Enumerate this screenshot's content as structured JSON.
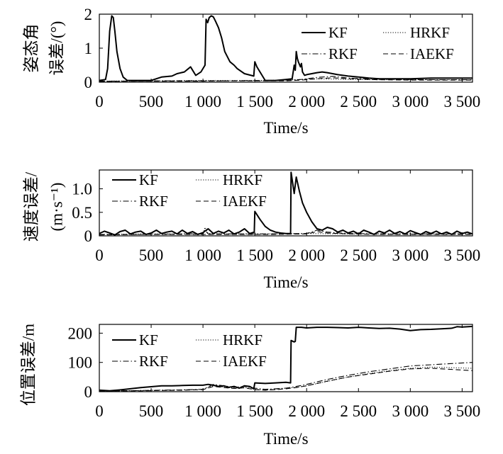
{
  "chart_data": [
    {
      "type": "line",
      "title": "",
      "xlabel": "Time/s",
      "ylabel_lines": [
        "姿态角",
        "误差/(°)"
      ],
      "xlim": [
        0,
        3600
      ],
      "ylim": [
        0,
        2
      ],
      "xticks": [
        0,
        500,
        1000,
        1500,
        2000,
        2500,
        3000,
        3500
      ],
      "xtick_labels": [
        "0",
        "500",
        "1 000",
        "1 500",
        "2 000",
        "2 500",
        "3 000",
        "3 500"
      ],
      "yticks": [
        0,
        1,
        2
      ],
      "ytick_labels": [
        "0",
        "1",
        "2"
      ],
      "legend": [
        "KF",
        "HRKF",
        "RKF",
        "IAEKF"
      ],
      "series": [
        {
          "name": "KF",
          "style": "solid",
          "x": [
            0,
            60,
            80,
            100,
            120,
            135,
            150,
            170,
            200,
            230,
            270,
            350,
            500,
            600,
            700,
            750,
            820,
            860,
            880,
            900,
            930,
            980,
            1020,
            1030,
            1045,
            1060,
            1080,
            1100,
            1120,
            1150,
            1180,
            1210,
            1260,
            1300,
            1330,
            1400,
            1490,
            1500,
            1520,
            1600,
            1640,
            1700,
            1800,
            1860,
            1880,
            1890,
            1900,
            1910,
            1920,
            1940,
            1950,
            1960,
            1980,
            2000,
            2050,
            2100,
            2150,
            2200,
            2300,
            2400,
            2500,
            2600,
            2700,
            2800,
            2900,
            3000,
            3200,
            3400,
            3600
          ],
          "y": [
            0.05,
            0.08,
            0.4,
            1.5,
            1.95,
            1.9,
            1.5,
            0.9,
            0.4,
            0.15,
            0.05,
            0.05,
            0.05,
            0.15,
            0.18,
            0.25,
            0.3,
            0.4,
            0.45,
            0.35,
            0.2,
            0.3,
            0.5,
            1.85,
            1.75,
            1.9,
            1.95,
            1.92,
            1.8,
            1.6,
            1.3,
            0.9,
            0.6,
            0.5,
            0.4,
            0.25,
            0.18,
            0.6,
            0.45,
            0.05,
            0.05,
            0.05,
            0.08,
            0.1,
            0.5,
            0.35,
            0.9,
            0.7,
            0.6,
            0.45,
            0.55,
            0.3,
            0.2,
            0.22,
            0.25,
            0.28,
            0.3,
            0.28,
            0.22,
            0.18,
            0.15,
            0.12,
            0.1,
            0.1,
            0.1,
            0.1,
            0.12,
            0.12,
            0.12
          ]
        },
        {
          "name": "HRKF",
          "style": "dotted",
          "x": [
            0,
            300,
            600,
            900,
            1200,
            1500,
            1800,
            2100,
            2400,
            2700,
            3000,
            3300,
            3600
          ],
          "y": [
            0.03,
            0.04,
            0.04,
            0.05,
            0.05,
            0.05,
            0.06,
            0.1,
            0.08,
            0.07,
            0.07,
            0.07,
            0.07
          ]
        },
        {
          "name": "RKF",
          "style": "dashdot",
          "x": [
            0,
            300,
            600,
            900,
            1200,
            1500,
            1800,
            1950,
            2100,
            2250,
            2400,
            2700,
            3000,
            3300,
            3600
          ],
          "y": [
            0.03,
            0.03,
            0.04,
            0.04,
            0.04,
            0.05,
            0.05,
            0.08,
            0.14,
            0.17,
            0.12,
            0.09,
            0.08,
            0.07,
            0.07
          ]
        },
        {
          "name": "IAEKF",
          "style": "dashed",
          "x": [
            0,
            300,
            600,
            900,
            1200,
            1500,
            1800,
            1950,
            2100,
            2250,
            2400,
            2700,
            3000,
            3300,
            3600
          ],
          "y": [
            0.02,
            0.03,
            0.03,
            0.03,
            0.04,
            0.04,
            0.04,
            0.06,
            0.1,
            0.13,
            0.1,
            0.07,
            0.06,
            0.06,
            0.06
          ]
        }
      ]
    },
    {
      "type": "line",
      "title": "",
      "xlabel": "Time/s",
      "ylabel_lines": [
        "速度误差/",
        "(m·s⁻¹)"
      ],
      "xlim": [
        0,
        3600
      ],
      "ylim": [
        0,
        1.4
      ],
      "xticks": [
        0,
        500,
        1000,
        1500,
        2000,
        2500,
        3000,
        3500
      ],
      "xtick_labels": [
        "0",
        "500",
        "1 000",
        "1 500",
        "2 000",
        "2 500",
        "3 000",
        "3 500"
      ],
      "yticks": [
        0,
        0.5,
        1.0
      ],
      "ytick_labels": [
        "0",
        "0.5",
        "1.0"
      ],
      "legend": [
        "KF",
        "HRKF",
        "RKF",
        "IAEKF"
      ],
      "series": [
        {
          "name": "KF",
          "style": "solid",
          "x": [
            0,
            50,
            100,
            150,
            200,
            250,
            300,
            350,
            400,
            450,
            500,
            550,
            600,
            650,
            700,
            750,
            800,
            850,
            900,
            950,
            1000,
            1050,
            1100,
            1150,
            1200,
            1250,
            1300,
            1350,
            1400,
            1450,
            1495,
            1500,
            1550,
            1600,
            1650,
            1700,
            1750,
            1800,
            1845,
            1850,
            1880,
            1900,
            1930,
            1960,
            2000,
            2050,
            2100,
            2150,
            2200,
            2250,
            2300,
            2350,
            2400,
            2450,
            2500,
            2550,
            2600,
            2650,
            2700,
            2750,
            2800,
            2850,
            2900,
            2950,
            3000,
            3050,
            3100,
            3150,
            3200,
            3250,
            3300,
            3350,
            3400,
            3450,
            3500,
            3550,
            3600
          ],
          "y": [
            0.05,
            0.1,
            0.06,
            0.02,
            0.09,
            0.12,
            0.04,
            0.08,
            0.1,
            0.03,
            0.06,
            0.12,
            0.05,
            0.08,
            0.1,
            0.04,
            0.12,
            0.05,
            0.09,
            0.03,
            0.07,
            0.15,
            0.05,
            0.1,
            0.06,
            0.12,
            0.04,
            0.08,
            0.15,
            0.05,
            0.08,
            0.52,
            0.35,
            0.2,
            0.12,
            0.08,
            0.06,
            0.05,
            0.05,
            1.35,
            0.9,
            1.25,
            0.95,
            0.7,
            0.5,
            0.3,
            0.15,
            0.12,
            0.18,
            0.15,
            0.08,
            0.12,
            0.06,
            0.1,
            0.04,
            0.12,
            0.08,
            0.03,
            0.1,
            0.06,
            0.12,
            0.05,
            0.09,
            0.04,
            0.11,
            0.07,
            0.03,
            0.09,
            0.05,
            0.1,
            0.04,
            0.08,
            0.03,
            0.1,
            0.05,
            0.08,
            0.04
          ]
        },
        {
          "name": "HRKF",
          "style": "dotted",
          "x": [
            0,
            400,
            800,
            1000,
            1020,
            1050,
            1200,
            1600,
            2000,
            2400,
            2800,
            3200,
            3600
          ],
          "y": [
            0.03,
            0.04,
            0.04,
            0.05,
            0.18,
            0.05,
            0.04,
            0.04,
            0.05,
            0.04,
            0.04,
            0.04,
            0.04
          ]
        },
        {
          "name": "RKF",
          "style": "dashdot",
          "x": [
            0,
            400,
            800,
            1000,
            1020,
            1050,
            1200,
            1600,
            2000,
            2100,
            2200,
            2400,
            2800,
            3200,
            3600
          ],
          "y": [
            0.03,
            0.03,
            0.04,
            0.04,
            0.12,
            0.04,
            0.04,
            0.04,
            0.05,
            0.12,
            0.08,
            0.05,
            0.04,
            0.04,
            0.04
          ]
        },
        {
          "name": "IAEKF",
          "style": "dashed",
          "x": [
            0,
            400,
            800,
            1200,
            1600,
            2000,
            2100,
            2200,
            2400,
            2800,
            3200,
            3600
          ],
          "y": [
            0.02,
            0.03,
            0.03,
            0.03,
            0.03,
            0.04,
            0.09,
            0.06,
            0.04,
            0.03,
            0.03,
            0.03
          ]
        }
      ]
    },
    {
      "type": "line",
      "title": "",
      "xlabel": "Time/s",
      "ylabel_lines": [
        "位置误差/m"
      ],
      "xlim": [
        0,
        3600
      ],
      "ylim": [
        0,
        230
      ],
      "xticks": [
        0,
        500,
        1000,
        1500,
        2000,
        2500,
        3000,
        3500
      ],
      "xtick_labels": [
        "0",
        "500",
        "1 000",
        "1 500",
        "2 000",
        "2 500",
        "3 000",
        "3 500"
      ],
      "yticks": [
        0,
        100,
        200
      ],
      "ytick_labels": [
        "0",
        "100",
        "200"
      ],
      "legend": [
        "KF",
        "HRKF",
        "RKF",
        "IAEKF"
      ],
      "series": [
        {
          "name": "KF",
          "style": "solid",
          "x": [
            0,
            100,
            200,
            300,
            400,
            500,
            600,
            700,
            800,
            900,
            1000,
            1050,
            1100,
            1150,
            1200,
            1250,
            1300,
            1350,
            1400,
            1450,
            1490,
            1500,
            1600,
            1700,
            1800,
            1845,
            1850,
            1880,
            1890,
            1900,
            1950,
            2000,
            2100,
            2200,
            2300,
            2400,
            2500,
            2600,
            2700,
            2800,
            2900,
            3000,
            3100,
            3200,
            3300,
            3400,
            3450,
            3500,
            3600
          ],
          "y": [
            5,
            3,
            6,
            10,
            14,
            17,
            20,
            20,
            21,
            22,
            22,
            25,
            22,
            18,
            20,
            15,
            18,
            12,
            20,
            18,
            10,
            30,
            28,
            30,
            32,
            30,
            175,
            170,
            172,
            220,
            220,
            218,
            220,
            220,
            219,
            218,
            220,
            218,
            216,
            217,
            214,
            209,
            212,
            213,
            215,
            217,
            222,
            221,
            223
          ]
        },
        {
          "name": "HRKF",
          "style": "dotted",
          "x": [
            0,
            200,
            400,
            600,
            800,
            1000,
            1100,
            1200,
            1300,
            1400,
            1500,
            1600,
            1700,
            1800,
            1900,
            2000,
            2200,
            2400,
            2600,
            2800,
            3000,
            3200,
            3400,
            3600
          ],
          "y": [
            3,
            3,
            4,
            5,
            6,
            8,
            20,
            15,
            12,
            14,
            8,
            6,
            8,
            12,
            15,
            20,
            35,
            50,
            62,
            72,
            80,
            84,
            82,
            80
          ]
        },
        {
          "name": "RKF",
          "style": "dashdot",
          "x": [
            0,
            200,
            400,
            600,
            800,
            1000,
            1100,
            1200,
            1300,
            1400,
            1500,
            1600,
            1700,
            1800,
            1900,
            2000,
            2200,
            2400,
            2600,
            2800,
            3000,
            3200,
            3400,
            3600
          ],
          "y": [
            3,
            3,
            4,
            5,
            6,
            8,
            25,
            20,
            15,
            18,
            12,
            8,
            10,
            12,
            18,
            25,
            42,
            56,
            68,
            78,
            88,
            92,
            96,
            100
          ]
        },
        {
          "name": "IAEKF",
          "style": "dashed",
          "x": [
            0,
            200,
            400,
            600,
            800,
            1000,
            1100,
            1200,
            1300,
            1400,
            1500,
            1600,
            1700,
            1800,
            1900,
            2000,
            2200,
            2400,
            2600,
            2800,
            3000,
            3200,
            3400,
            3600
          ],
          "y": [
            2,
            3,
            3,
            4,
            5,
            7,
            18,
            14,
            11,
            13,
            7,
            5,
            7,
            10,
            14,
            20,
            36,
            50,
            60,
            70,
            78,
            80,
            76,
            72
          ]
        }
      ]
    }
  ]
}
